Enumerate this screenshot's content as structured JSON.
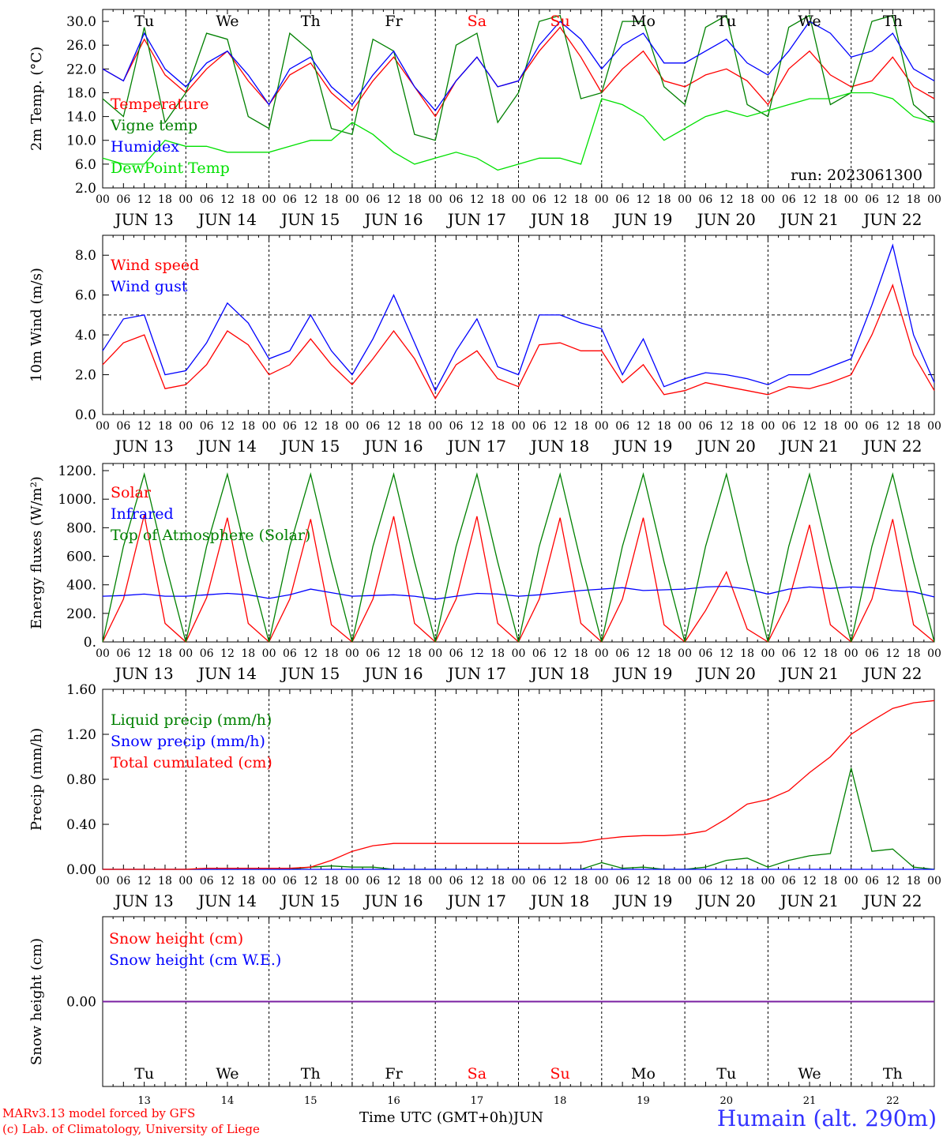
{
  "colors": {
    "temperature": "#ff0000",
    "vigne": "#008000",
    "humidex": "#0000ff",
    "dewpoint": "#00e000",
    "toa": "#008000",
    "snow_we": "#7a1fa2",
    "weekend": "#ff0000",
    "location": "#3333ff"
  },
  "x_axis": {
    "hour_ticks": [
      "00",
      "06",
      "12",
      "18"
    ],
    "last_tick": "00",
    "dates": [
      "JUN 13",
      "JUN 14",
      "JUN 15",
      "JUN 16",
      "JUN 17",
      "JUN 18",
      "JUN 19",
      "JUN 20",
      "JUN 21",
      "JUN 22"
    ],
    "days": [
      "Tu",
      "We",
      "Th",
      "Fr",
      "Sa",
      "Su",
      "Mo",
      "Tu",
      "We",
      "Th"
    ],
    "weekend_index": [
      4,
      5
    ],
    "day_numbers": [
      "13",
      "14",
      "15",
      "16",
      "17",
      "18",
      "19",
      "20",
      "21",
      "22"
    ],
    "month": "JUN"
  },
  "run_label": "run: 2023061300",
  "footer": {
    "model": "MARv3.13 model forced by GFS",
    "credit": "(c) Lab. of Climatology, University of Liege",
    "time_label": "Time UTC (GMT+0h)",
    "location": "Humain (alt. 290m)"
  },
  "chart_data": [
    {
      "id": "temperature",
      "type": "line",
      "ylabel": "2m Temp. (°C)",
      "ylim": [
        2,
        32
      ],
      "yticks": [
        2,
        6,
        10,
        14,
        18,
        22,
        26,
        30
      ],
      "ytick_labels": [
        "2.0",
        "6.0",
        "10.0",
        "14.0",
        "18.0",
        "22.0",
        "26.0",
        "30.0"
      ],
      "x": [
        0,
        6,
        12,
        18,
        24,
        30,
        36,
        42,
        48,
        54,
        60,
        66,
        72,
        78,
        84,
        90,
        96,
        102,
        108,
        114,
        120,
        126,
        132,
        138,
        144,
        150,
        156,
        162,
        168,
        174,
        180,
        186,
        192,
        198,
        204,
        210,
        216,
        222,
        228,
        234,
        240
      ],
      "series": [
        {
          "name": "Temperature",
          "color_key": "temperature",
          "values": [
            22,
            20,
            27,
            21,
            18,
            22,
            25,
            20,
            16,
            21,
            23,
            18,
            15,
            20,
            24,
            19,
            14,
            20,
            24,
            19,
            20,
            25,
            29,
            24,
            18,
            22,
            25,
            20,
            19,
            21,
            22,
            20,
            16,
            22,
            25,
            21,
            19,
            20,
            24,
            19,
            17
          ]
        },
        {
          "name": "Vigne temp",
          "color_key": "vigne",
          "values": [
            17,
            14,
            29,
            13,
            18,
            28,
            27,
            14,
            12,
            28,
            25,
            12,
            11,
            27,
            25,
            11,
            10,
            26,
            28,
            13,
            18,
            30,
            31,
            17,
            18,
            30,
            30,
            19,
            16,
            29,
            31,
            16,
            14,
            29,
            31,
            16,
            18,
            30,
            31,
            16,
            13
          ]
        },
        {
          "name": "Humidex",
          "color_key": "humidex",
          "values": [
            22,
            20,
            28,
            22,
            19,
            23,
            25,
            21,
            16,
            22,
            24,
            19,
            16,
            21,
            25,
            19,
            15,
            20,
            24,
            19,
            20,
            26,
            30,
            27,
            22,
            26,
            28,
            23,
            23,
            25,
            27,
            23,
            21,
            25,
            30,
            28,
            24,
            25,
            28,
            22,
            20
          ]
        },
        {
          "name": "DewPoint Temp",
          "color_key": "dewpoint",
          "values": [
            7,
            6,
            6,
            10,
            9,
            9,
            8,
            8,
            8,
            9,
            10,
            10,
            13,
            11,
            8,
            6,
            7,
            8,
            7,
            5,
            6,
            7,
            7,
            6,
            17,
            16,
            14,
            10,
            12,
            14,
            15,
            14,
            15,
            16,
            17,
            17,
            18,
            18,
            17,
            14,
            13
          ]
        }
      ]
    },
    {
      "id": "wind",
      "type": "line",
      "ylabel": "10m Wind (m/s)",
      "ylim": [
        0,
        9
      ],
      "yticks": [
        0,
        2,
        4,
        6,
        8
      ],
      "ytick_labels": [
        "0.0",
        "2.0",
        "4.0",
        "6.0",
        "8.0"
      ],
      "ref_line": 5,
      "x": [
        0,
        6,
        12,
        18,
        24,
        30,
        36,
        42,
        48,
        54,
        60,
        66,
        72,
        78,
        84,
        90,
        96,
        102,
        108,
        114,
        120,
        126,
        132,
        138,
        144,
        150,
        156,
        162,
        168,
        174,
        180,
        186,
        192,
        198,
        204,
        210,
        216,
        222,
        228,
        234,
        240
      ],
      "series": [
        {
          "name": "Wind speed",
          "color_key": "temperature",
          "values": [
            2.5,
            3.6,
            4.0,
            1.3,
            1.5,
            2.5,
            4.2,
            3.5,
            2.0,
            2.5,
            3.8,
            2.5,
            1.5,
            2.8,
            4.2,
            2.8,
            0.8,
            2.5,
            3.2,
            1.8,
            1.4,
            3.5,
            3.6,
            3.2,
            3.2,
            1.6,
            2.5,
            1.0,
            1.2,
            1.6,
            1.4,
            1.2,
            1.0,
            1.4,
            1.3,
            1.6,
            2.0,
            4.0,
            6.5,
            3.0,
            1.2
          ]
        },
        {
          "name": "Wind gust",
          "color_key": "humidex",
          "values": [
            3.2,
            4.8,
            5.0,
            2.0,
            2.2,
            3.6,
            5.6,
            4.6,
            2.8,
            3.2,
            5.0,
            3.2,
            2.0,
            3.8,
            6.0,
            3.6,
            1.2,
            3.2,
            4.8,
            2.4,
            2.0,
            5.0,
            5.0,
            4.6,
            4.3,
            2.0,
            3.8,
            1.4,
            1.8,
            2.1,
            2.0,
            1.8,
            1.5,
            2.0,
            2.0,
            2.4,
            2.8,
            5.5,
            8.5,
            4.0,
            1.6
          ]
        }
      ]
    },
    {
      "id": "energy",
      "type": "line",
      "ylabel": "Energy fluxes (W/m²)",
      "ylim": [
        0,
        1250
      ],
      "yticks": [
        0,
        200,
        400,
        600,
        800,
        1000,
        1200
      ],
      "ytick_labels": [
        "0.",
        "200.",
        "400.",
        "600.",
        "800.",
        "1000.",
        "1200."
      ],
      "x": [
        0,
        6,
        12,
        18,
        24,
        30,
        36,
        42,
        48,
        54,
        60,
        66,
        72,
        78,
        84,
        90,
        96,
        102,
        108,
        114,
        120,
        126,
        132,
        138,
        144,
        150,
        156,
        162,
        168,
        174,
        180,
        186,
        192,
        198,
        204,
        210,
        216,
        222,
        228,
        234,
        240
      ],
      "series": [
        {
          "name": "Solar",
          "color_key": "temperature",
          "values": [
            0,
            300,
            890,
            130,
            0,
            310,
            870,
            130,
            0,
            300,
            860,
            120,
            0,
            300,
            880,
            130,
            0,
            300,
            880,
            130,
            0,
            300,
            870,
            130,
            0,
            300,
            870,
            120,
            0,
            220,
            490,
            90,
            0,
            290,
            820,
            120,
            0,
            300,
            860,
            120,
            0
          ]
        },
        {
          "name": "Infrared",
          "color_key": "humidex",
          "values": [
            320,
            325,
            335,
            320,
            320,
            330,
            340,
            330,
            305,
            330,
            370,
            345,
            320,
            325,
            330,
            320,
            300,
            320,
            340,
            335,
            320,
            330,
            345,
            360,
            370,
            380,
            360,
            365,
            370,
            385,
            390,
            370,
            335,
            370,
            385,
            375,
            385,
            380,
            360,
            350,
            315
          ]
        },
        {
          "name": "Top of Atmosphere (Solar)",
          "color_key": "toa",
          "values": [
            0,
            670,
            1175,
            560,
            0,
            670,
            1175,
            560,
            0,
            670,
            1175,
            560,
            0,
            670,
            1175,
            560,
            0,
            670,
            1175,
            560,
            0,
            670,
            1175,
            560,
            0,
            670,
            1175,
            560,
            0,
            670,
            1175,
            560,
            0,
            670,
            1175,
            560,
            0,
            670,
            1175,
            560,
            0
          ]
        }
      ]
    },
    {
      "id": "precip",
      "type": "line",
      "ylabel": "Precip (mm/h)",
      "ylim": [
        0,
        1.6
      ],
      "yticks": [
        0,
        0.4,
        0.8,
        1.2,
        1.6
      ],
      "ytick_labels": [
        "0.00",
        "0.40",
        "0.80",
        "1.20",
        "1.60"
      ],
      "x": [
        0,
        6,
        12,
        18,
        24,
        30,
        36,
        42,
        48,
        54,
        60,
        66,
        72,
        78,
        84,
        90,
        96,
        102,
        108,
        114,
        120,
        126,
        132,
        138,
        144,
        150,
        156,
        162,
        168,
        174,
        180,
        186,
        192,
        198,
        204,
        210,
        216,
        222,
        228,
        234,
        240
      ],
      "series": [
        {
          "name": "Liquid precip (mm/h)",
          "color_key": "vigne",
          "values": [
            0,
            0,
            0,
            0,
            0,
            0,
            0,
            0,
            0,
            0,
            0.02,
            0.03,
            0.02,
            0.02,
            0,
            0,
            0,
            0,
            0,
            0,
            0,
            0,
            0,
            0,
            0.06,
            0.01,
            0.02,
            0,
            0,
            0.02,
            0.08,
            0.1,
            0.02,
            0.08,
            0.12,
            0.14,
            0.9,
            0.16,
            0.18,
            0.02,
            0
          ]
        },
        {
          "name": "Snow precip (mm/h)",
          "color_key": "humidex",
          "values": [
            0,
            0,
            0,
            0,
            0,
            0,
            0,
            0,
            0,
            0,
            0,
            0,
            0,
            0,
            0,
            0,
            0,
            0,
            0,
            0,
            0,
            0,
            0,
            0,
            0,
            0,
            0,
            0,
            0,
            0,
            0,
            0,
            0,
            0,
            0,
            0,
            0,
            0,
            0,
            0,
            0
          ]
        },
        {
          "name": "Total cumulated (cm)",
          "color_key": "temperature",
          "values": [
            0,
            0,
            0,
            0,
            0,
            0.01,
            0.01,
            0.01,
            0.01,
            0.01,
            0.02,
            0.08,
            0.16,
            0.21,
            0.23,
            0.23,
            0.23,
            0.23,
            0.23,
            0.23,
            0.23,
            0.23,
            0.23,
            0.24,
            0.27,
            0.29,
            0.3,
            0.3,
            0.31,
            0.34,
            0.45,
            0.58,
            0.62,
            0.7,
            0.86,
            1.0,
            1.2,
            1.32,
            1.43,
            1.48,
            1.5
          ]
        }
      ]
    },
    {
      "id": "snow",
      "type": "line",
      "ylabel": "Snow height (cm)",
      "ylim": [
        -1,
        1
      ],
      "yticks": [
        0
      ],
      "ytick_labels": [
        "0.00"
      ],
      "x": [
        0,
        240
      ],
      "series": [
        {
          "name": "Snow height (cm)",
          "color_key": "temperature",
          "values": [
            0,
            0
          ]
        },
        {
          "name": "Snow height (cm W.E.)",
          "color_key": "humidex",
          "values": [
            0,
            0
          ]
        }
      ]
    }
  ]
}
